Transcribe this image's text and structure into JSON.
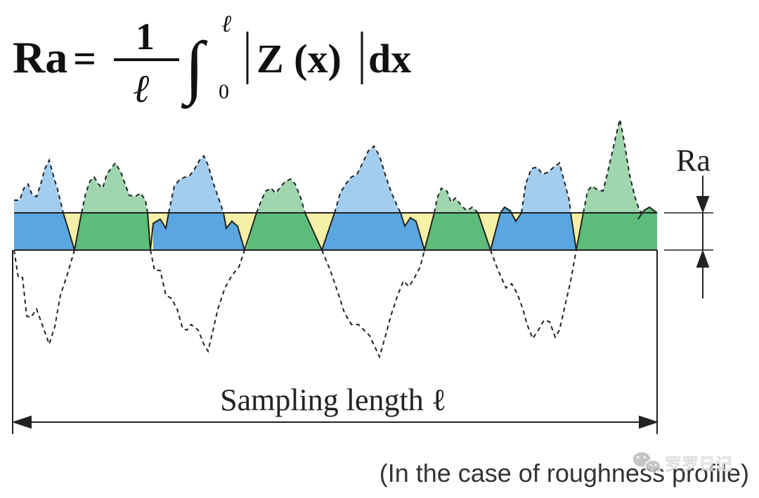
{
  "formula": {
    "lhs": "Ra",
    "equals": "=",
    "numerator": "1",
    "denominator": "ℓ",
    "integral_sign": "∫",
    "upper_limit": "ℓ",
    "lower_limit": "0",
    "integrand": "Z (x)",
    "differential": "dx"
  },
  "labels": {
    "ra": "Ra",
    "sampling_length": "Sampling length ℓ",
    "caption": "(In the case of roughness profile)",
    "watermark": "罗罗日记"
  },
  "colors": {
    "blue": "#5aa6e0",
    "light_blue": "#a3cdef",
    "green": "#5cbc7a",
    "light_green": "#9fd6ad",
    "band_yellow": "#f6f0a6",
    "line": "#222222"
  }
}
